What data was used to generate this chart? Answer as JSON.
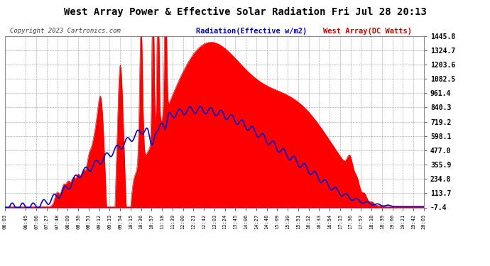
{
  "title": "West Array Power & Effective Solar Radiation Fri Jul 28 20:13",
  "copyright": "Copyright 2023 Cartronics.com",
  "legend_radiation": "Radiation(Effective w/m2)",
  "legend_west": "West Array(DC Watts)",
  "bg_color": "#ffffff",
  "plot_bg_color": "#ffffff",
  "grid_color": "#aaaaaa",
  "title_color": "#000000",
  "copyright_color": "#555555",
  "radiation_color": "#0000cc",
  "west_array_color": "#cc0000",
  "west_array_fill": "#ff0000",
  "ymin": -7.4,
  "ymax": 1445.8,
  "yticks": [
    -7.4,
    113.7,
    234.8,
    355.9,
    477.0,
    598.1,
    719.2,
    840.3,
    961.4,
    1082.5,
    1203.6,
    1324.7,
    1445.8
  ],
  "xtick_labels": [
    "06:03",
    "06:45",
    "07:06",
    "07:27",
    "07:48",
    "08:09",
    "08:30",
    "08:51",
    "09:12",
    "09:33",
    "09:54",
    "10:15",
    "10:36",
    "10:57",
    "11:18",
    "11:39",
    "12:00",
    "12:21",
    "12:42",
    "13:03",
    "13:24",
    "13:45",
    "14:06",
    "14:27",
    "14:48",
    "15:09",
    "15:30",
    "15:51",
    "16:12",
    "16:33",
    "16:54",
    "17:15",
    "17:36",
    "17:57",
    "18:18",
    "18:39",
    "19:00",
    "19:21",
    "19:42",
    "20:03"
  ]
}
